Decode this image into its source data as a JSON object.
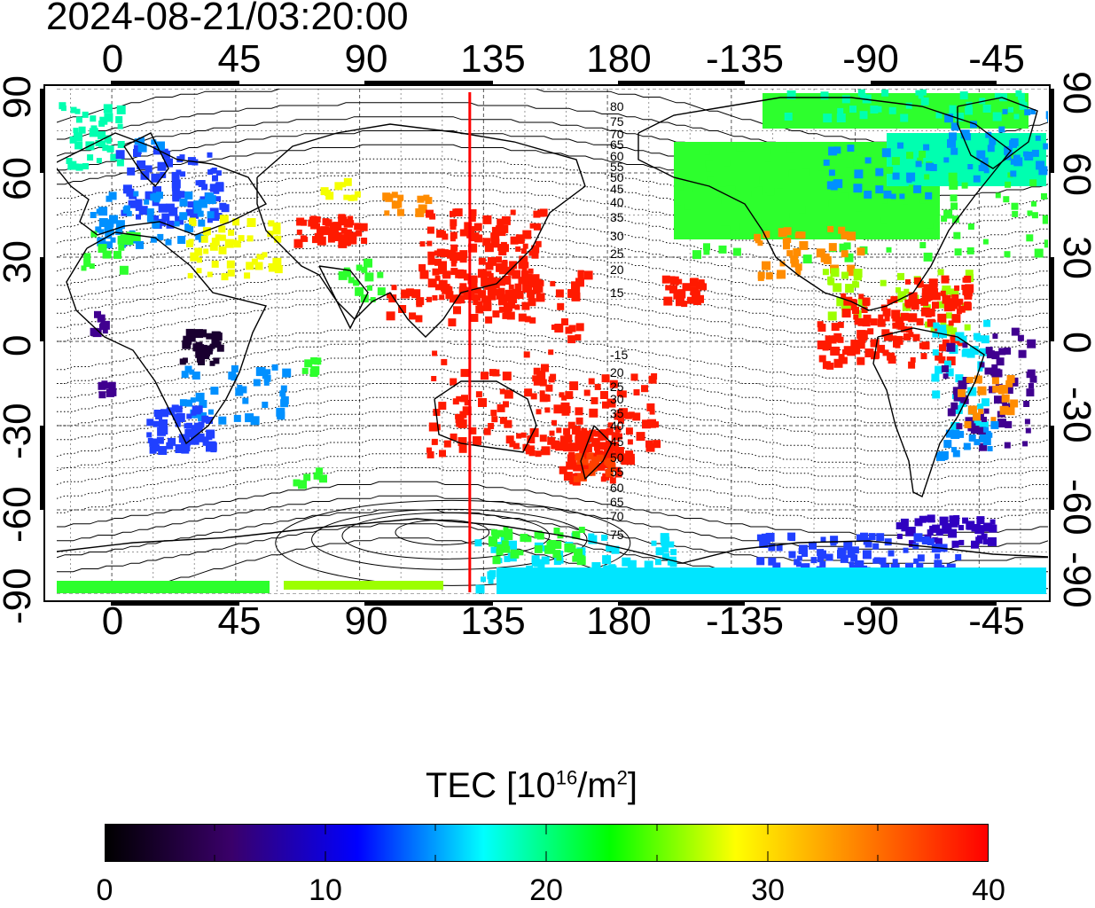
{
  "title": "2024-08-21/03:20:00",
  "axes": {
    "longitude_ticks": [
      "0",
      "45",
      "90",
      "135",
      "180",
      "-135",
      "-90",
      "-45"
    ],
    "latitude_ticks_left": [
      "90",
      "60",
      "30",
      "0",
      "-30",
      "-60",
      "-90"
    ],
    "latitude_ticks_right": [
      "90",
      "60",
      "30",
      "0",
      "-30",
      "-60",
      "-90"
    ]
  },
  "map": {
    "lon_range": [
      -20,
      340
    ],
    "lat_range": [
      -90,
      90
    ],
    "meridian_marker_lon": 130,
    "marker_color": "#ff0000",
    "contour_labels_north": [
      "80",
      "75",
      "70",
      "65",
      "60",
      "55",
      "50",
      "45",
      "40",
      "35",
      "30",
      "25",
      "20",
      "15"
    ],
    "contour_labels_south": [
      "-15",
      "20",
      "25",
      "30",
      "35",
      "40",
      "45",
      "50",
      "55",
      "60",
      "65",
      "70",
      "75"
    ]
  },
  "colorbar": {
    "title_prefix": "TEC  [10",
    "title_exp": "16",
    "title_mid": "/m",
    "title_exp2": "2",
    "title_suffix": "]",
    "tick_labels": [
      "0",
      "10",
      "20",
      "30",
      "40"
    ],
    "range": [
      0,
      40
    ],
    "colors": [
      "#000000",
      "#3a006a",
      "#0000ff",
      "#00ffff",
      "#00ff00",
      "#ffff00",
      "#ff7f00",
      "#ff0000"
    ]
  }
}
